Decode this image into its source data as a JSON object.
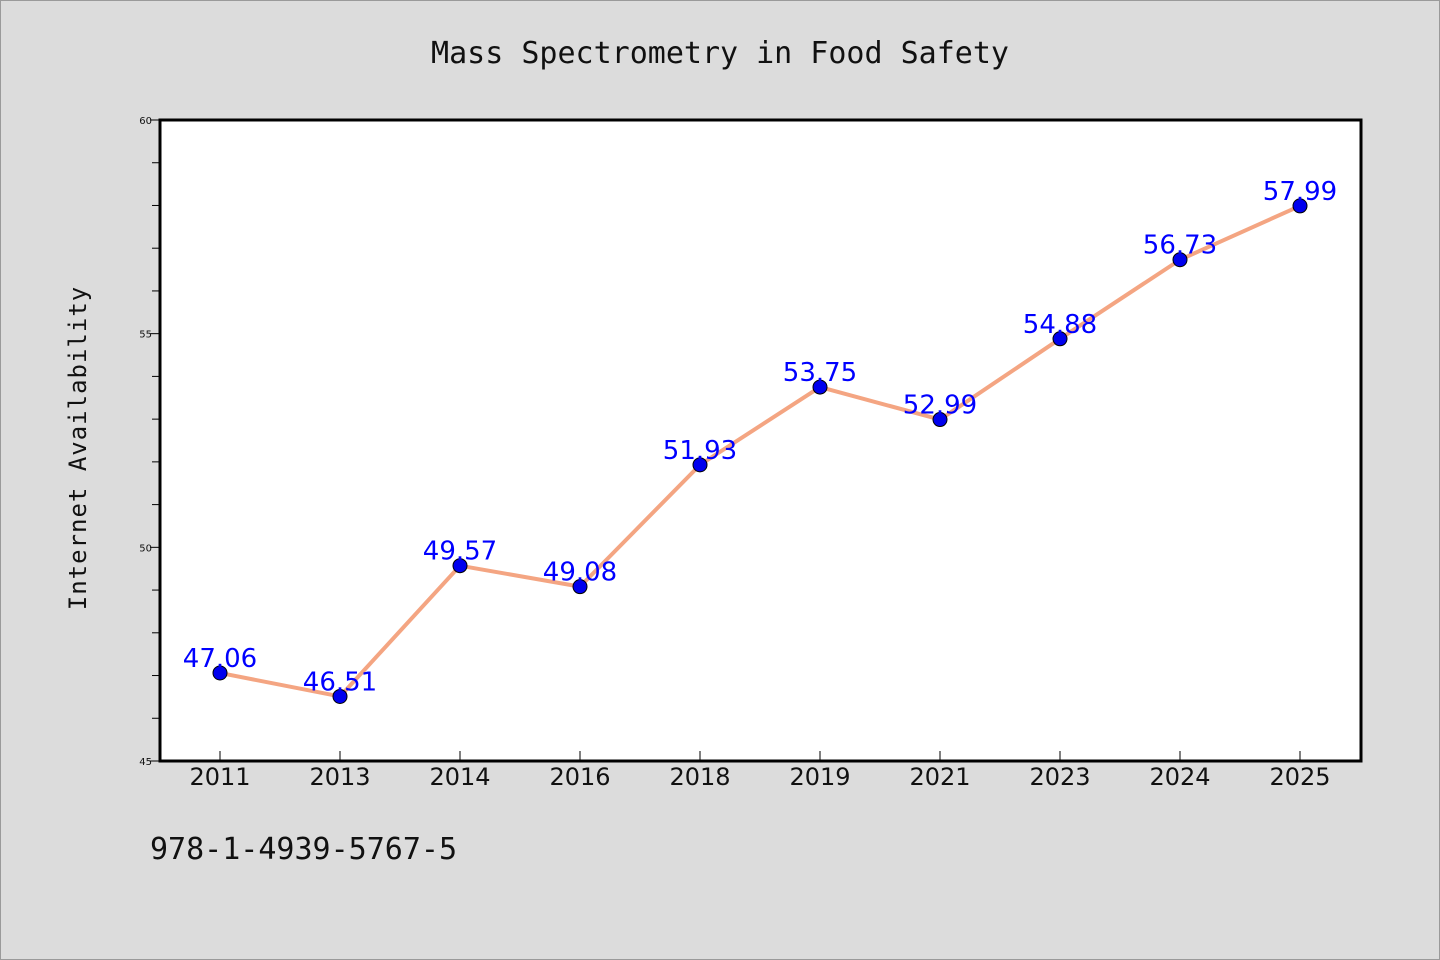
{
  "chart_data": {
    "type": "line",
    "title": "Mass Spectrometry in Food Safety",
    "xlabel": "",
    "ylabel": "Internet Availability",
    "categories": [
      "2011",
      "2013",
      "2014",
      "2016",
      "2018",
      "2019",
      "2021",
      "2023",
      "2024",
      "2025"
    ],
    "series": [
      {
        "values": [
          47.06,
          46.51,
          49.57,
          49.08,
          51.93,
          53.75,
          52.99,
          54.88,
          56.73,
          57.99
        ],
        "data_labels": [
          "47.06",
          "46.51",
          "49.57",
          "49.08",
          "51.93",
          "53.75",
          "52.99",
          "54.88",
          "56.73",
          "57.99"
        ]
      }
    ],
    "ylim": [
      45,
      60
    ],
    "yticks": [
      45,
      50,
      55,
      60
    ],
    "ytick_labels": [
      "45",
      "50",
      "55",
      "60"
    ],
    "grid": false,
    "legend": "none",
    "colors": {
      "line": "#f4a582",
      "marker": "#0000ee",
      "data_label": "#0000ff",
      "background": "#dcdcdc",
      "plot_area": "#ffffff"
    }
  },
  "footer": {
    "isbn": "978-1-4939-5767-5"
  }
}
